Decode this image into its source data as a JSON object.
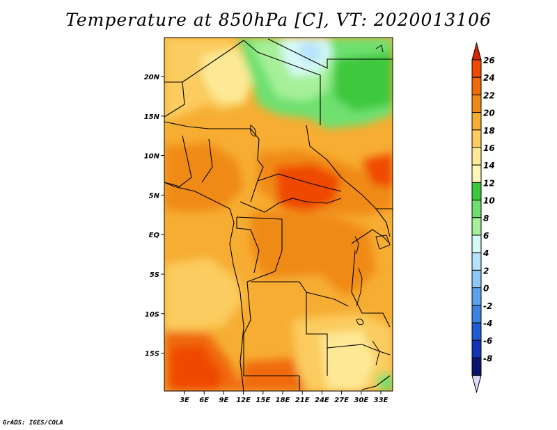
{
  "title": "Temperature at 850hPa [C], VT: 2020013106",
  "credit": "GrADS: IGES/COLA",
  "map": {
    "lat_ticks": [
      "20N",
      "15N",
      "10N",
      "5N",
      "EQ",
      "5S",
      "10S",
      "15S"
    ],
    "lon_ticks": [
      "3E",
      "6E",
      "9E",
      "12E",
      "15E",
      "18E",
      "21E",
      "24E",
      "27E",
      "30E",
      "33E"
    ]
  },
  "legend": {
    "labels": [
      "26",
      "24",
      "22",
      "20",
      "18",
      "16",
      "14",
      "12",
      "10",
      "8",
      "6",
      "4",
      "2",
      "0",
      "-2",
      "-4",
      "-6",
      "-8"
    ],
    "colors": [
      "#d22a00",
      "#ef4a00",
      "#f06a0a",
      "#f08a17",
      "#f6ad32",
      "#fbcc5e",
      "#fde995",
      "#fdf6b9",
      "#3cc83c",
      "#6fe06f",
      "#a7f09a",
      "#d6faf5",
      "#b7e2fb",
      "#8fc8f4",
      "#5aa3ec",
      "#3c82e0",
      "#1f5dd2",
      "#1234b4",
      "#0a1470",
      "#dcdcfa"
    ]
  }
}
